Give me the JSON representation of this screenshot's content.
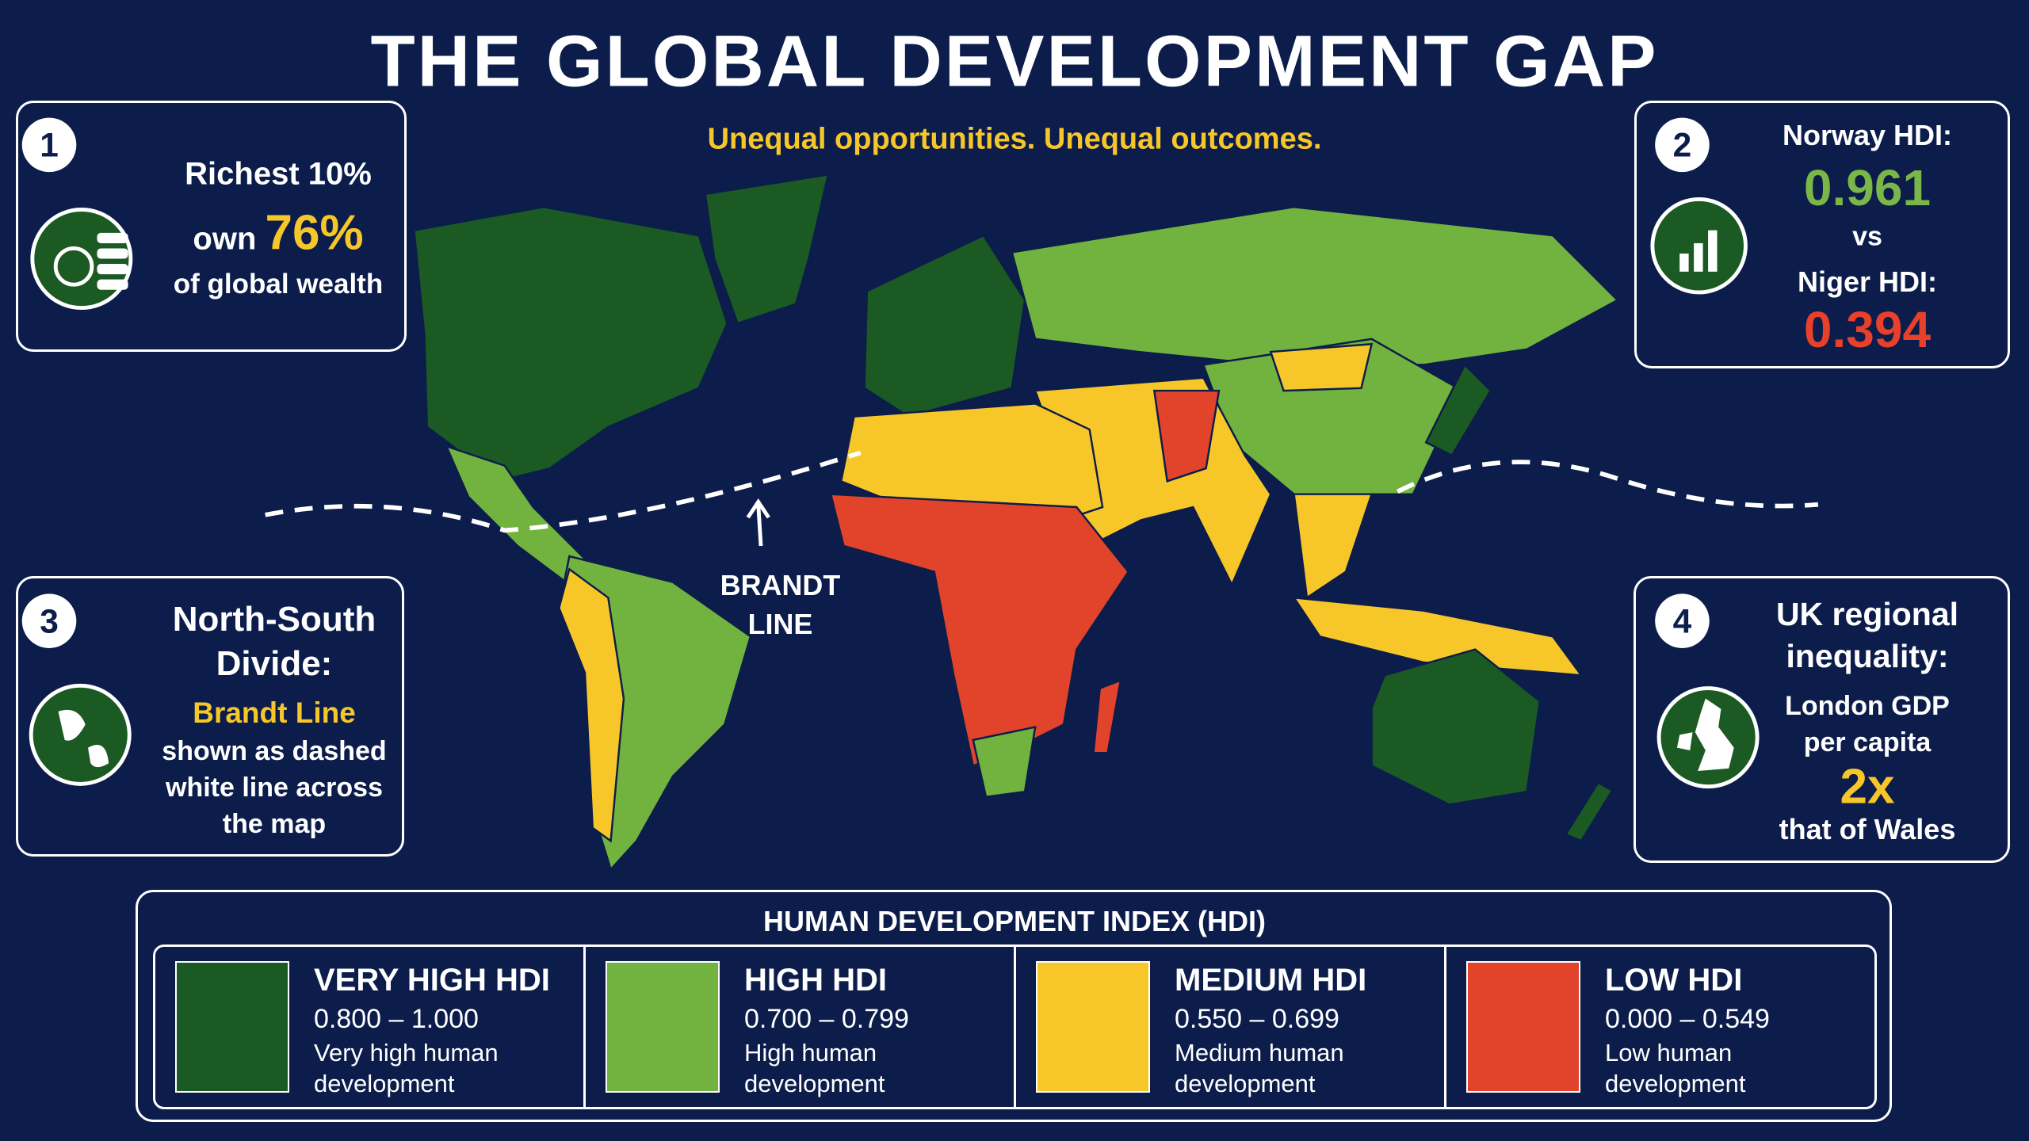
{
  "header": {
    "title": "THE GLOBAL DEVELOPMENT GAP",
    "subtitle": "Unequal opportunities. Unequal outcomes."
  },
  "cards": [
    {
      "number": "1",
      "lines": [
        "Richest 10%",
        "own",
        "76%",
        "of global wealth"
      ]
    },
    {
      "number": "2",
      "lines": [
        "Norway HDI:",
        "0.961",
        "vs",
        "Niger HDI:",
        "0.394"
      ]
    },
    {
      "number": "3",
      "lines": [
        "North-South Divide:",
        "Brandt Line",
        "shown as dashed white line across the map"
      ]
    },
    {
      "number": "4",
      "lines": [
        "UK regional inequality:",
        "London GDP per capita",
        "2x",
        "that of Wales"
      ]
    }
  ],
  "map": {
    "label": [
      "BRANDT",
      "LINE"
    ]
  },
  "legend": {
    "title": "HUMAN DEVELOPMENT INDEX (HDI)",
    "items": [
      {
        "name": "VERY HIGH HDI",
        "range": "0.800 – 1.000",
        "description": "Very high human development",
        "color": "#1b5a22"
      },
      {
        "name": "HIGH HDI",
        "range": "0.700 – 0.799",
        "description": "High human development",
        "color": "#72b23f"
      },
      {
        "name": "MEDIUM HDI",
        "range": "0.550 – 0.699",
        "description": "Medium human development",
        "color": "#f7c72a"
      },
      {
        "name": "LOW HDI",
        "range": "0.000 – 0.549",
        "description": "Low human development",
        "color": "#e2432b"
      }
    ]
  }
}
